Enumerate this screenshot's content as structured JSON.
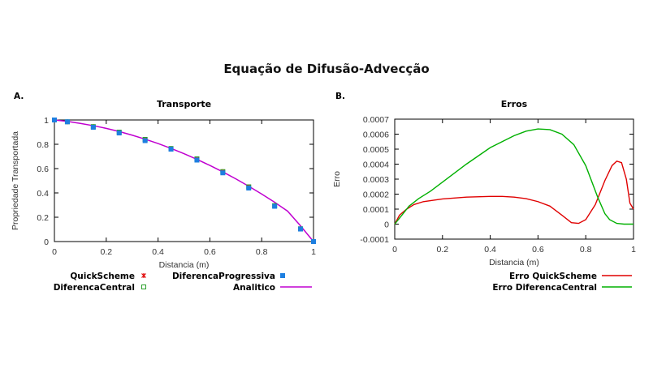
{
  "figure_title": "Equação de Difusão-Advecção",
  "colors": {
    "quick": "#e00000",
    "central": "#2aa02a",
    "progressiva": "#1e7fe0",
    "analitico": "#c000d0",
    "err_quick": "#e00000",
    "err_central": "#00b000"
  },
  "chart_data": [
    {
      "panel_label": "A.",
      "type": "line",
      "title": "Transporte",
      "xlabel": "Distancia (m)",
      "ylabel": "Propriedade Transportada",
      "xlim": [
        0,
        1
      ],
      "ylim": [
        0,
        1
      ],
      "xticks": [
        "0",
        "0.2",
        "0.4",
        "0.6",
        "0.8",
        "1"
      ],
      "yticks": [
        "0",
        "0.2",
        "0.4",
        "0.6",
        "0.8",
        "1"
      ],
      "legend": {
        "quick": "QuickScheme",
        "progressiva": "DiferencaProgressiva",
        "central": "DiferencaCentral",
        "analitico": "Analitico"
      },
      "series": [
        {
          "name": "QuickScheme",
          "marker": "star",
          "x": [
            0,
            0.05,
            0.15,
            0.25,
            0.35,
            0.45,
            0.55,
            0.65,
            0.75,
            0.85,
            0.95,
            1
          ],
          "y": [
            1,
            0.985,
            0.945,
            0.9,
            0.84,
            0.765,
            0.68,
            0.575,
            0.45,
            0.295,
            0.105,
            0
          ]
        },
        {
          "name": "DiferencaCentral",
          "marker": "open-square",
          "x": [
            0,
            0.05,
            0.15,
            0.25,
            0.35,
            0.45,
            0.55,
            0.65,
            0.75,
            0.85,
            0.95,
            1
          ],
          "y": [
            1,
            0.985,
            0.945,
            0.9,
            0.84,
            0.765,
            0.68,
            0.575,
            0.45,
            0.295,
            0.105,
            0
          ]
        },
        {
          "name": "DiferencaProgressiva",
          "marker": "filled-square",
          "x": [
            0,
            0.05,
            0.15,
            0.25,
            0.35,
            0.45,
            0.55,
            0.65,
            0.75,
            0.85,
            0.95,
            1
          ],
          "y": [
            1,
            0.985,
            0.94,
            0.893,
            0.83,
            0.76,
            0.67,
            0.565,
            0.44,
            0.29,
            0.103,
            0
          ]
        },
        {
          "name": "Analitico",
          "marker": "line",
          "x": [
            0,
            0.05,
            0.1,
            0.15,
            0.2,
            0.25,
            0.3,
            0.35,
            0.4,
            0.45,
            0.5,
            0.55,
            0.6,
            0.65,
            0.7,
            0.75,
            0.8,
            0.85,
            0.9,
            0.95,
            1
          ],
          "y": [
            1,
            0.988,
            0.972,
            0.953,
            0.931,
            0.905,
            0.875,
            0.842,
            0.806,
            0.766,
            0.723,
            0.676,
            0.626,
            0.573,
            0.516,
            0.455,
            0.391,
            0.323,
            0.25,
            0.129,
            0
          ]
        }
      ]
    },
    {
      "panel_label": "B.",
      "type": "line",
      "title": "Erros",
      "xlabel": "Distancia (m)",
      "ylabel": "Erro",
      "xlim": [
        0,
        1
      ],
      "ylim": [
        -0.0001,
        0.0007
      ],
      "xticks": [
        "0",
        "0.2",
        "0.4",
        "0.6",
        "0.8",
        "1"
      ],
      "yticks": [
        "-0.0001",
        "0",
        "0.0001",
        "0.0002",
        "0.0003",
        "0.0004",
        "0.0005",
        "0.0006",
        "0.0007"
      ],
      "series": [
        {
          "name": "Erro QuickScheme",
          "x": [
            0,
            0.02,
            0.05,
            0.08,
            0.12,
            0.2,
            0.3,
            0.4,
            0.45,
            0.5,
            0.55,
            0.6,
            0.65,
            0.7,
            0.74,
            0.77,
            0.8,
            0.84,
            0.88,
            0.91,
            0.93,
            0.95,
            0.97,
            0.985,
            1
          ],
          "y": [
            0,
            6e-05,
            0.0001,
            0.00013,
            0.00015,
            0.000168,
            0.00018,
            0.000185,
            0.000185,
            0.00018,
            0.00017,
            0.00015,
            0.00012,
            6e-05,
            1e-05,
            5e-06,
            3e-05,
            0.00013,
            0.00029,
            0.00039,
            0.00042,
            0.00041,
            0.0003,
            0.00014,
            0.0001
          ]
        },
        {
          "name": "Erro DiferencaCentral",
          "x": [
            0,
            0.03,
            0.06,
            0.1,
            0.15,
            0.2,
            0.3,
            0.4,
            0.5,
            0.55,
            0.6,
            0.65,
            0.7,
            0.75,
            0.8,
            0.85,
            0.88,
            0.9,
            0.93,
            0.96,
            0.98,
            1
          ],
          "y": [
            0,
            6e-05,
            0.00012,
            0.00017,
            0.00022,
            0.00028,
            0.0004,
            0.00051,
            0.00059,
            0.00062,
            0.000635,
            0.00063,
            0.0006,
            0.00053,
            0.00039,
            0.00018,
            7e-05,
            3e-05,
            5e-06,
            0,
            0,
            0
          ]
        }
      ]
    }
  ]
}
